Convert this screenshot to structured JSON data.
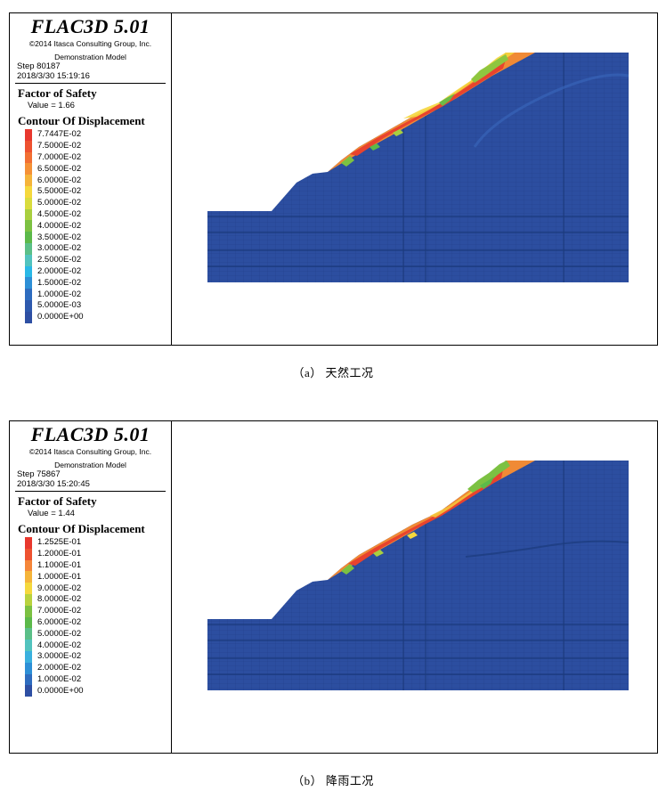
{
  "figures": [
    {
      "brand": "FLAC3D 5.01",
      "copyright": "©2014 Itasca Consulting Group, Inc.",
      "model": "Demonstration Model",
      "step": "Step 80187",
      "datetime": "2018/3/30 15:19:16",
      "fos_title": "Factor of Safety",
      "fos_value": "Value = 1.66",
      "contour_title": "Contour Of Displacement",
      "contour_levels": [
        {
          "label": "7.7447E-02",
          "color": "#e8382e"
        },
        {
          "label": "7.5000E-02",
          "color": "#ee5230"
        },
        {
          "label": "7.0000E-02",
          "color": "#f26f33"
        },
        {
          "label": "6.5000E-02",
          "color": "#f59136"
        },
        {
          "label": "6.0000E-02",
          "color": "#f5b43a"
        },
        {
          "label": "5.5000E-02",
          "color": "#f5d83d"
        },
        {
          "label": "5.0000E-02",
          "color": "#d9dc3e"
        },
        {
          "label": "4.5000E-02",
          "color": "#a9cf3f"
        },
        {
          "label": "4.0000E-02",
          "color": "#7cc142"
        },
        {
          "label": "3.5000E-02",
          "color": "#5cb94a"
        },
        {
          "label": "3.0000E-02",
          "color": "#5bbf88"
        },
        {
          "label": "2.5000E-02",
          "color": "#52c3be"
        },
        {
          "label": "2.0000E-02",
          "color": "#2ab8e6"
        },
        {
          "label": "1.5000E-02",
          "color": "#2d8fd6"
        },
        {
          "label": "1.0000E-02",
          "color": "#2e6cbf"
        },
        {
          "label": "5.0000E-03",
          "color": "#2e59ad"
        },
        {
          "label": "0.0000E+00",
          "color": "#2e4fa3"
        }
      ],
      "caption": "（a） 天然工况"
    },
    {
      "brand": "FLAC3D 5.01",
      "copyright": "©2014 Itasca Consulting Group, Inc.",
      "model": "Demonstration Model",
      "step": "Step 75867",
      "datetime": "2018/3/30 15:20:45",
      "fos_title": "Factor of Safety",
      "fos_value": "Value = 1.44",
      "contour_title": "Contour Of Displacement",
      "contour_levels": [
        {
          "label": "1.2525E-01",
          "color": "#e8382e"
        },
        {
          "label": "1.2000E-01",
          "color": "#ee5230"
        },
        {
          "label": "1.1000E-01",
          "color": "#f5863a"
        },
        {
          "label": "1.0000E-01",
          "color": "#f5b43a"
        },
        {
          "label": "9.0000E-02",
          "color": "#f5d83d"
        },
        {
          "label": "8.0000E-02",
          "color": "#b9d23e"
        },
        {
          "label": "7.0000E-02",
          "color": "#7cc142"
        },
        {
          "label": "6.0000E-02",
          "color": "#5cb94a"
        },
        {
          "label": "5.0000E-02",
          "color": "#5bbf88"
        },
        {
          "label": "4.0000E-02",
          "color": "#52c3be"
        },
        {
          "label": "3.0000E-02",
          "color": "#3ab0de"
        },
        {
          "label": "2.0000E-02",
          "color": "#2d8fd6"
        },
        {
          "label": "1.0000E-02",
          "color": "#2e6cbf"
        },
        {
          "label": "0.0000E+00",
          "color": "#2e4fa3"
        }
      ],
      "caption": "（b） 降雨工况"
    }
  ]
}
